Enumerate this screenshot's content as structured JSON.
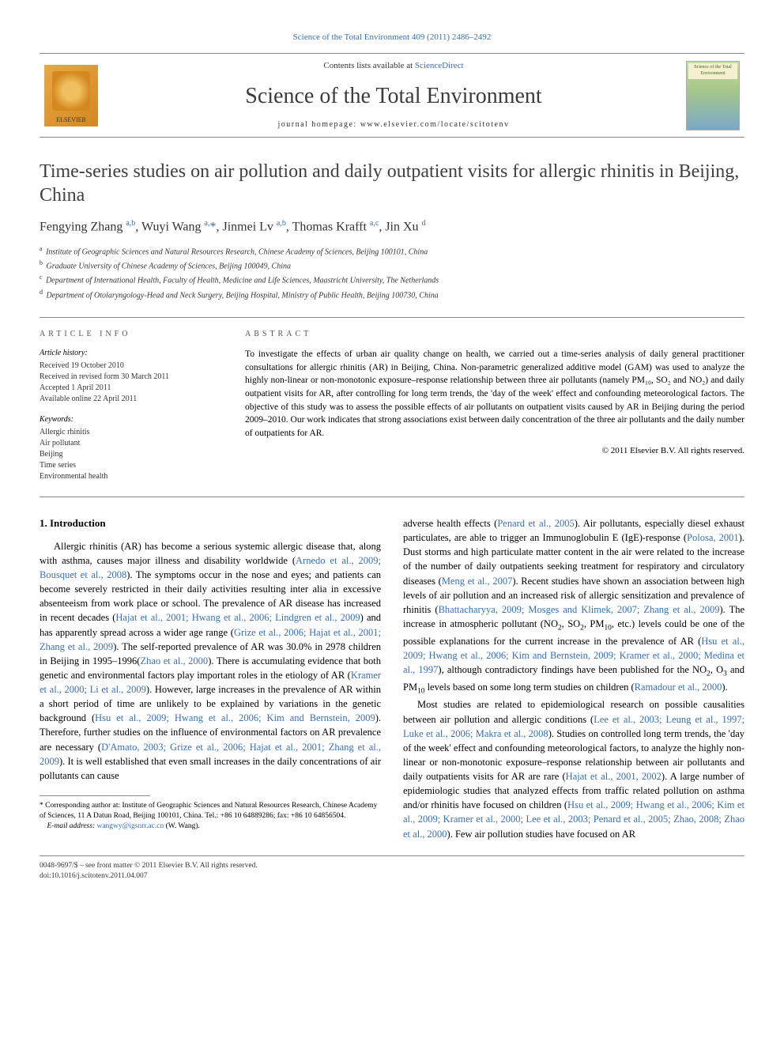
{
  "journal_ref": "Science of the Total Environment 409 (2011) 2486–2492",
  "header": {
    "contents_prefix": "Contents lists available at ",
    "contents_link": "ScienceDirect",
    "journal_title": "Science of the Total Environment",
    "homepage_prefix": "journal homepage: ",
    "homepage": "www.elsevier.com/locate/scitotenv",
    "elsevier": "ELSEVIER",
    "cover_text": "Science of the Total Environment"
  },
  "title": "Time-series studies on air pollution and daily outpatient visits for allergic rhinitis in Beijing, China",
  "authors_html": "Fengying Zhang <sup>a,b</sup>, Wuyi Wang <sup>a,</sup><span class='ast'>*</span>, Jinmei Lv <sup>a,b</sup>, Thomas Krafft <sup>a,c</sup>, Jin Xu <sup>d</sup>",
  "affiliations": [
    {
      "sup": "a",
      "text": "Institute of Geographic Sciences and Natural Resources Research, Chinese Academy of Sciences, Beijing 100101, China"
    },
    {
      "sup": "b",
      "text": "Graduate University of Chinese Academy of Sciences, Beijing 100049, China"
    },
    {
      "sup": "c",
      "text": "Department of International Health, Faculty of Health, Medicine and Life Sciences, Maastricht University, The Netherlands"
    },
    {
      "sup": "d",
      "text": "Department of Otolaryngology-Head and Neck Surgery, Beijing Hospital, Ministry of Public Health, Beijing 100730, China"
    }
  ],
  "info_labels": {
    "article_info": "ARTICLE INFO",
    "abstract": "ABSTRACT",
    "history": "Article history:",
    "keywords": "Keywords:"
  },
  "history": [
    "Received 19 October 2010",
    "Received in revised form 30 March 2011",
    "Accepted 1 April 2011",
    "Available online 22 April 2011"
  ],
  "keywords": [
    "Allergic rhinitis",
    "Air pollutant",
    "Beijing",
    "Time series",
    "Environmental health"
  ],
  "abstract": "To investigate the effects of urban air quality change on health, we carried out a time-series analysis of daily general practitioner consultations for allergic rhinitis (AR) in Beijing, China. Non-parametric generalized additive model (GAM) was used to analyze the highly non-linear or non-monotonic exposure–response relationship between three air pollutants (namely PM₁₀, SO₂ and NO₂) and daily outpatient visits for AR, after controlling for long term trends, the 'day of the week' effect and confounding meteorological factors. The objective of this study was to assess the possible effects of air pollutants on outpatient visits caused by AR in Beijing during the period 2009–2010. Our work indicates that strong associations exist between daily concentration of the three air pollutants and the daily number of outpatients for AR.",
  "copyright": "© 2011 Elsevier B.V. All rights reserved.",
  "intro_heading": "1. Introduction",
  "col1_html": "Allergic rhinitis (AR) has become a serious systemic allergic disease that, along with asthma, causes major illness and disability worldwide (<a>Arnedo et al., 2009; Bousquet et al., 2008</a>). The symptoms occur in the nose and eyes; and patients can become severely restricted in their daily activities resulting inter alia in excessive absenteeism from work place or school. The prevalence of AR disease has increased in recent decades (<a>Hajat et al., 2001; Hwang et al., 2006; Lindgren et al., 2009</a>) and has apparently spread across a wider age range (<a>Grize et al., 2006; Hajat et al., 2001; Zhang et al., 2009</a>). The self-reported prevalence of AR was 30.0% in 2978 children in Beijing in 1995–1996(<a>Zhao et al., 2000</a>). There is accumulating evidence that both genetic and environmental factors play important roles in the etiology of AR (<a>Kramer et al., 2000; Li et al., 2009</a>). However, large increases in the prevalence of AR within a short period of time are unlikely to be explained by variations in the genetic background (<a>Hsu et al., 2009; Hwang et al., 2006; Kim and Bernstein, 2009</a>). Therefore, further studies on the influence of environmental factors on AR prevalence are necessary (<a>D'Amato, 2003; Grize et al., 2006; Hajat et al., 2001; Zhang et al., 2009</a>). It is well established that even small increases in the daily concentrations of air pollutants can cause",
  "col2_p1_html": "adverse health effects (<a>Penard et al., 2005</a>). Air pollutants, especially diesel exhaust particulates, are able to trigger an Immunoglobulin E (IgE)-response (<a>Polosa, 2001</a>). Dust storms and high particulate matter content in the air were related to the increase of the number of daily outpatients seeking treatment for respiratory and circulatory diseases (<a>Meng et al., 2007</a>). Recent studies have shown an association between high levels of air pollution and an increased risk of allergic sensitization and prevalence of rhinitis (<a>Bhattacharyya, 2009; Mosges and Klimek, 2007; Zhang et al., 2009</a>). The increase in atmospheric pollutant (NO<sub>2</sub>, SO<sub>2</sub>, PM<sub>10</sub>, etc.) levels could be one of the possible explanations for the current increase in the prevalence of AR (<a>Hsu et al., 2009; Hwang et al., 2006; Kim and Bernstein, 2009; Kramer et al., 2000; Medina et al., 1997</a>), although contradictory findings have been published for the NO<sub>2</sub>, O<sub>3</sub> and PM<sub>10</sub> levels based on some long term studies on children (<a>Ramadour et al., 2000</a>).",
  "col2_p2_html": "Most studies are related to epidemiological research on possible causalities between air pollution and allergic conditions (<a>Lee et al., 2003; Leung et al., 1997; Luke et al., 2006; Makra et al., 2008</a>). Studies on controlled long term trends, the 'day of the week' effect and confounding meteorological factors, to analyze the highly non-linear or non-monotonic exposure–response relationship between air pollutants and daily outpatients visits for AR are rare (<a>Hajat et al., 2001, 2002</a>). A large number of epidemiologic studies that analyzed effects from traffic related pollution on asthma and/or rhinitis have focused on children (<a>Hsu et al., 2009; Hwang et al., 2006; Kim et al., 2009; Kramer et al., 2000; Lee et al., 2003; Penard et al., 2005; Zhao, 2008; Zhao et al., 2000</a>). Few air pollution studies have focused on AR",
  "footnote": {
    "corresp": "* Corresponding author at: Institute of Geographic Sciences and Natural Resources Research, Chinese Academy of Sciences, 11 A Datun Road, Beijing 100101, China. Tel.: +86 10 64889286; fax: +86 10 64856504.",
    "email_label": "E-mail address:",
    "email": "wangwy@igsnrr.ac.cn",
    "email_who": "(W. Wang)."
  },
  "bottom": {
    "line1": "0048-9697/$ – see front matter © 2011 Elsevier B.V. All rights reserved.",
    "line2": "doi:10.1016/j.scitotenv.2011.04.007"
  },
  "colors": {
    "link": "#3a6fb0",
    "text": "#000000",
    "rule": "#888888"
  }
}
